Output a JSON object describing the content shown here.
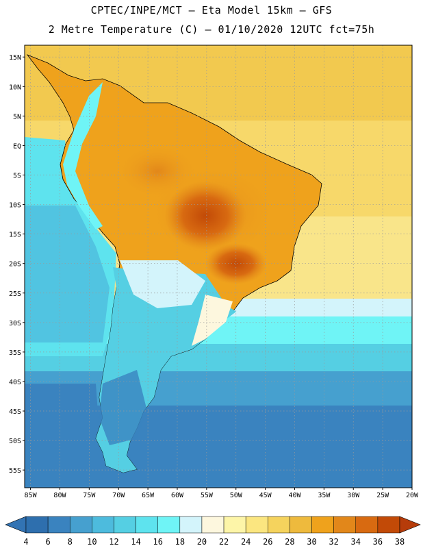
{
  "title": {
    "line1": "CPTEC/INPE/MCT –  Eta Model 15km – GFS",
    "line2": "2 Metre Temperature (C) – 01/10/2020 12UTC fct=75h"
  },
  "map": {
    "region": "South America",
    "lon_range": [
      -86,
      -20
    ],
    "lat_range": [
      -58,
      17
    ],
    "lat_ticks": [
      "15N",
      "10N",
      "5N",
      "EQ",
      "5S",
      "10S",
      "15S",
      "20S",
      "25S",
      "30S",
      "35S",
      "40S",
      "45S",
      "50S",
      "55S"
    ],
    "lat_values": [
      15,
      10,
      5,
      0,
      -5,
      -10,
      -15,
      -20,
      -25,
      -30,
      -35,
      -40,
      -45,
      -50,
      -55
    ],
    "lon_ticks": [
      "85W",
      "80W",
      "75W",
      "70W",
      "65W",
      "60W",
      "55W",
      "50W",
      "45W",
      "40W",
      "35W",
      "30W",
      "25W",
      "20W"
    ],
    "lon_values": [
      -85,
      -80,
      -75,
      -70,
      -65,
      -60,
      -55,
      -50,
      -45,
      -40,
      -35,
      -30,
      -25,
      -20
    ],
    "gridlines": "dotted"
  },
  "colorbar": {
    "labels": [
      "4",
      "6",
      "8",
      "10",
      "12",
      "14",
      "16",
      "18",
      "20",
      "22",
      "24",
      "26",
      "28",
      "30",
      "32",
      "34",
      "36",
      "38"
    ],
    "colors": [
      "#2e6fae",
      "#3a83bf",
      "#46a0cf",
      "#4dbbdd",
      "#55cfe3",
      "#5ee3ee",
      "#6ff4f6",
      "#d3f4fb",
      "#fdf7de",
      "#fdf5a8",
      "#fbe680",
      "#f5d35d",
      "#eeba3d",
      "#efa21c",
      "#e2871a",
      "#d86a11",
      "#c24a07"
    ],
    "left_arrow_color": "#3273b3",
    "right_arrow_color": "#b63c0a"
  }
}
